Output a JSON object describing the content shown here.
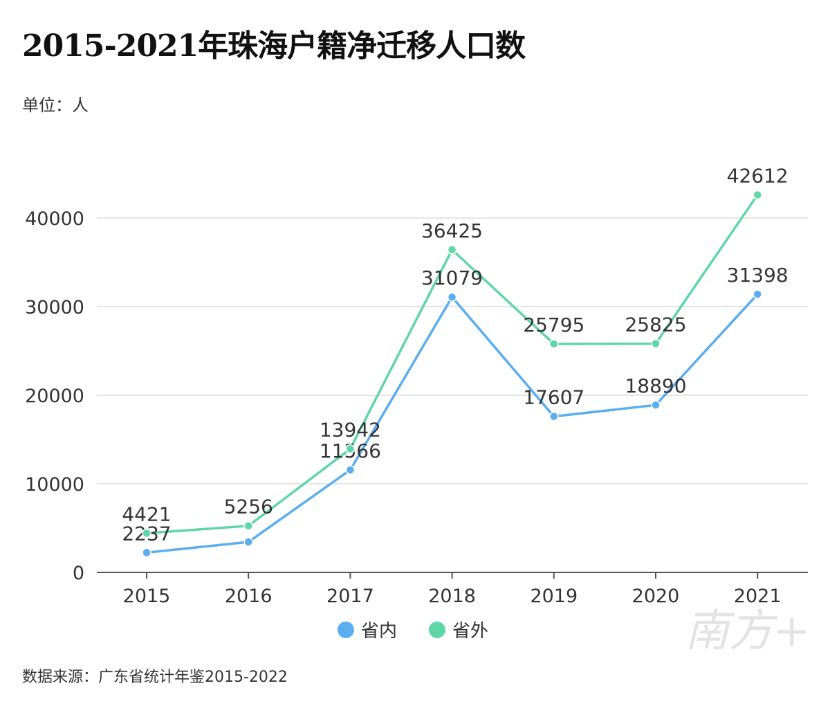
{
  "title": "2015-2021年珠海户籍净迁移人口数",
  "unit": "单位：人",
  "source": "数据来源：广东省统计年鉴2015-2022",
  "watermark": "南方+",
  "chart_data": {
    "type": "line",
    "title": "2015-2021年珠海户籍净迁移人口数",
    "xlabel": "",
    "ylabel": "单位：人",
    "categories": [
      "2015",
      "2016",
      "2017",
      "2018",
      "2019",
      "2020",
      "2021"
    ],
    "ylim": [
      0,
      42612
    ],
    "yticks": [
      0,
      10000,
      20000,
      30000,
      40000
    ],
    "ytick_labels": [
      "0",
      "10000",
      "20000",
      "30000",
      "40000"
    ],
    "grid": true,
    "legend_position": "bottom",
    "series": [
      {
        "name": "省内",
        "color": "#5aaef0",
        "values": [
          2237,
          3437,
          11566,
          31079,
          17607,
          18890,
          31398
        ],
        "labels": [
          "2237",
          null,
          "11566",
          "31079",
          "17607",
          "18890",
          "31398"
        ]
      },
      {
        "name": "省外",
        "color": "#5fd6a8",
        "values": [
          4421,
          5256,
          13942,
          36425,
          25795,
          25825,
          42612
        ],
        "labels": [
          "4421",
          "5256",
          "13942",
          "36425",
          "25795",
          "25825",
          "42612"
        ]
      }
    ]
  }
}
